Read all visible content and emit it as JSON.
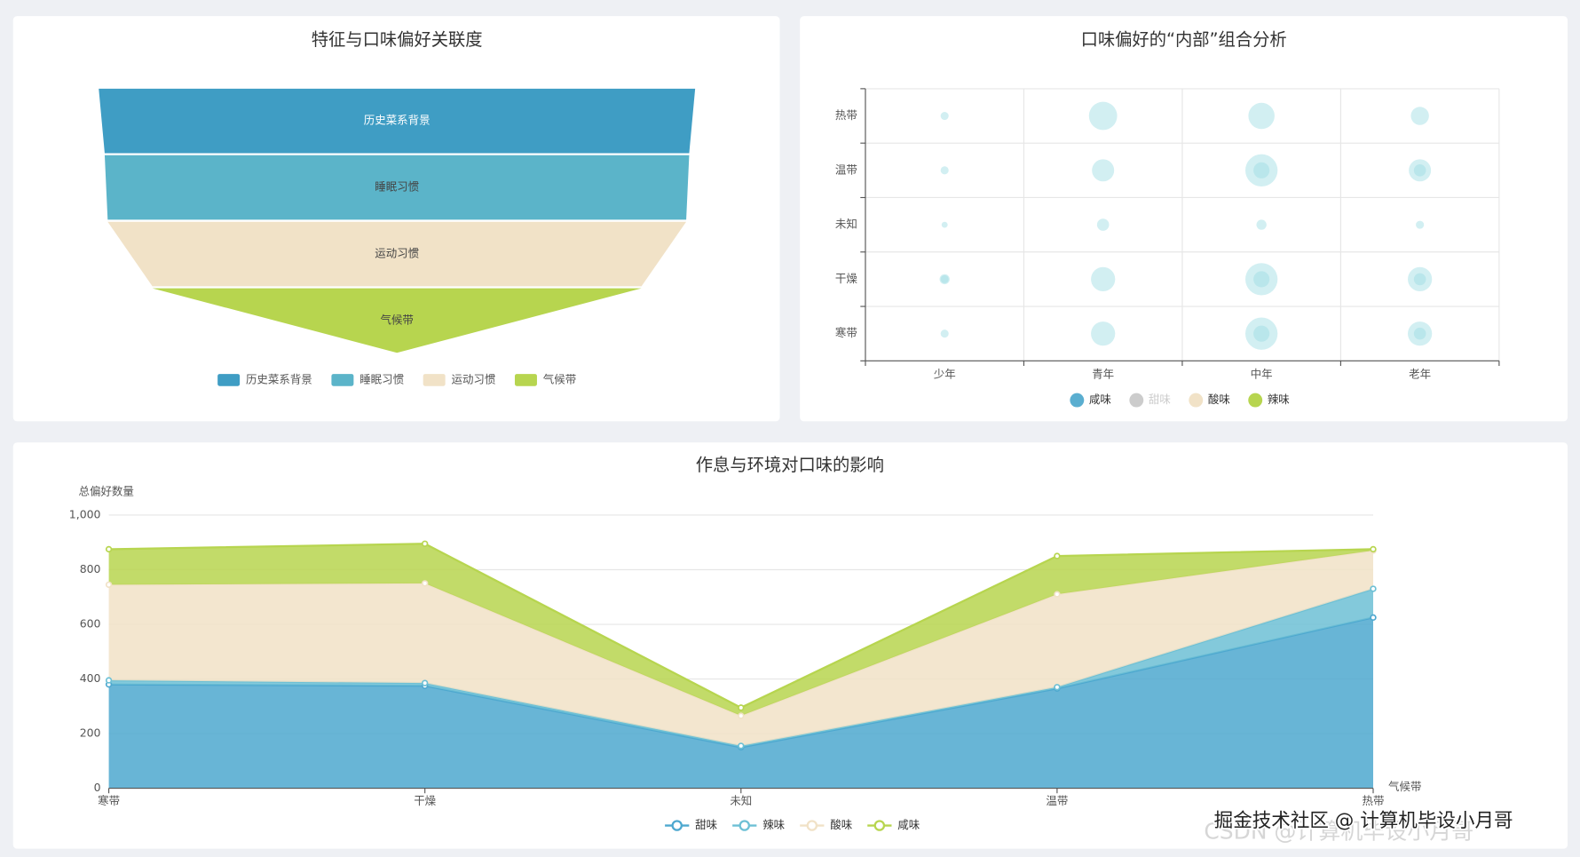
{
  "chart_data": [
    {
      "type": "funnel",
      "title": "特征与口味偏好关联度",
      "categories": [
        "历史菜系背景",
        "睡眠习惯",
        "运动习惯",
        "气候带"
      ],
      "values": [
        100,
        98,
        97,
        82
      ],
      "colors": [
        "#3f9dc4",
        "#5bb4c9",
        "#f1e2c7",
        "#b7d54f"
      ]
    },
    {
      "type": "bubble",
      "title": "口味偏好的“内部”组合分析",
      "x_categories": [
        "少年",
        "青年",
        "中年",
        "老年"
      ],
      "y_categories": [
        "寒带",
        "干燥",
        "未知",
        "温带",
        "热带"
      ],
      "grid": true,
      "bubble_color": "#9cdbe3",
      "series": [
        {
          "name": "咸味",
          "color": "#5aaed0",
          "values": [
            [
              4,
              12,
              8,
              6
            ],
            [
              4,
              12,
              8,
              6
            ],
            [
              3,
              6,
              5,
              4
            ],
            [
              4,
              11,
              8,
              6
            ],
            [
              4,
              14,
              13,
              9
            ]
          ]
        },
        {
          "name": "甜味",
          "color": "#cccccc",
          "selected": false
        },
        {
          "name": "酸味",
          "color": "#f1e2c7"
        },
        {
          "name": "辣味",
          "color": "#b7d54f",
          "values": [
            [
              null,
              null,
              16,
              12
            ],
            [
              5,
              null,
              16,
              12
            ],
            [
              null,
              null,
              null,
              null
            ],
            [
              null,
              null,
              16,
              11
            ],
            [
              null,
              null,
              null,
              null
            ]
          ]
        }
      ]
    },
    {
      "type": "area",
      "title": "作息与环境对口味的影响",
      "y_label": "总偏好数量",
      "x_label": "气候带",
      "categories": [
        "寒带",
        "干燥",
        "未知",
        "温带",
        "热带"
      ],
      "ylim": [
        0,
        1000
      ],
      "yticks": [
        0,
        200,
        400,
        600,
        800,
        {
          "value": 1000,
          "label": "1,000"
        }
      ],
      "grid": true,
      "stacked": true,
      "series": [
        {
          "name": "甜味",
          "color": "#4ea8cf",
          "values": [
            380,
            375,
            150,
            365,
            625
          ]
        },
        {
          "name": "辣味",
          "color": "#6dc0d5",
          "values": [
            15,
            10,
            5,
            5,
            105
          ]
        },
        {
          "name": "酸味",
          "color": "#f1e2c7",
          "values": [
            350,
            365,
            110,
            340,
            140
          ]
        },
        {
          "name": "咸味",
          "color": "#b7d54f",
          "values": [
            130,
            145,
            30,
            140,
            5
          ]
        }
      ]
    }
  ],
  "watermark": [
    "掘金技术社区 @ 计算机毕设小月哥",
    "CSDN @计算机毕设小月哥"
  ]
}
